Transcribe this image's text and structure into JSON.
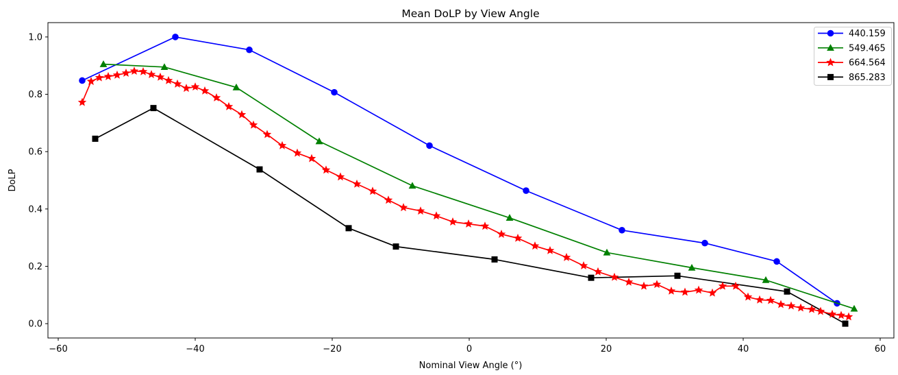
{
  "chart_data": {
    "type": "line",
    "title": "Mean DoLP by View Angle",
    "xlabel": "Nominal View Angle (°)",
    "ylabel": "DoLP",
    "xlim": [
      -61.5,
      62.0
    ],
    "ylim": [
      -0.05,
      1.05
    ],
    "xticks": [
      -60,
      -40,
      -20,
      0,
      20,
      40,
      60
    ],
    "yticks": [
      0.0,
      0.2,
      0.4,
      0.6,
      0.8,
      1.0
    ],
    "grid": false,
    "legend_position": "upper right",
    "draw_order": [
      0,
      1,
      3,
      2
    ],
    "series": [
      {
        "name": "440.159",
        "color": "#0000ff",
        "marker": "circle",
        "points": [
          [
            -56.5,
            0.848
          ],
          [
            -42.9,
            1.0
          ],
          [
            -32.1,
            0.955
          ],
          [
            -19.7,
            0.807
          ],
          [
            -5.8,
            0.621
          ],
          [
            8.3,
            0.464
          ],
          [
            22.3,
            0.326
          ],
          [
            34.4,
            0.281
          ],
          [
            44.9,
            0.217
          ],
          [
            53.7,
            0.071
          ]
        ]
      },
      {
        "name": "549.465",
        "color": "#008000",
        "marker": "triangle",
        "points": [
          [
            -53.4,
            0.905
          ],
          [
            -44.5,
            0.895
          ],
          [
            -34.0,
            0.824
          ],
          [
            -21.9,
            0.636
          ],
          [
            -8.3,
            0.481
          ],
          [
            5.9,
            0.369
          ],
          [
            20.1,
            0.248
          ],
          [
            32.5,
            0.195
          ],
          [
            43.3,
            0.152
          ],
          [
            56.2,
            0.052
          ]
        ]
      },
      {
        "name": "664.564",
        "color": "#ff0000",
        "marker": "star",
        "points": [
          [
            -56.5,
            0.772
          ],
          [
            -55.2,
            0.845
          ],
          [
            -54.0,
            0.858
          ],
          [
            -52.7,
            0.862
          ],
          [
            -51.4,
            0.867
          ],
          [
            -50.1,
            0.874
          ],
          [
            -48.9,
            0.881
          ],
          [
            -47.6,
            0.879
          ],
          [
            -46.4,
            0.869
          ],
          [
            -45.1,
            0.86
          ],
          [
            -43.9,
            0.848
          ],
          [
            -42.6,
            0.836
          ],
          [
            -41.3,
            0.821
          ],
          [
            -40.0,
            0.826
          ],
          [
            -38.6,
            0.812
          ],
          [
            -36.9,
            0.788
          ],
          [
            -35.1,
            0.757
          ],
          [
            -33.2,
            0.729
          ],
          [
            -31.5,
            0.693
          ],
          [
            -29.5,
            0.66
          ],
          [
            -27.3,
            0.621
          ],
          [
            -25.1,
            0.595
          ],
          [
            -23.0,
            0.576
          ],
          [
            -20.9,
            0.536
          ],
          [
            -18.8,
            0.512
          ],
          [
            -16.4,
            0.487
          ],
          [
            -14.1,
            0.462
          ],
          [
            -11.8,
            0.431
          ],
          [
            -9.6,
            0.405
          ],
          [
            -7.1,
            0.393
          ],
          [
            -4.8,
            0.376
          ],
          [
            -2.4,
            0.355
          ],
          [
            -0.1,
            0.348
          ],
          [
            2.3,
            0.34
          ],
          [
            4.7,
            0.312
          ],
          [
            7.1,
            0.298
          ],
          [
            9.6,
            0.271
          ],
          [
            11.8,
            0.255
          ],
          [
            14.2,
            0.231
          ],
          [
            16.7,
            0.202
          ],
          [
            18.8,
            0.181
          ],
          [
            21.2,
            0.162
          ],
          [
            23.3,
            0.145
          ],
          [
            25.5,
            0.131
          ],
          [
            27.4,
            0.137
          ],
          [
            29.5,
            0.114
          ],
          [
            31.5,
            0.11
          ],
          [
            33.5,
            0.117
          ],
          [
            35.5,
            0.107
          ],
          [
            37.0,
            0.131
          ],
          [
            38.9,
            0.131
          ],
          [
            40.7,
            0.093
          ],
          [
            42.4,
            0.083
          ],
          [
            44.0,
            0.081
          ],
          [
            45.5,
            0.067
          ],
          [
            47.0,
            0.062
          ],
          [
            48.4,
            0.055
          ],
          [
            50.0,
            0.05
          ],
          [
            51.3,
            0.043
          ],
          [
            53.0,
            0.033
          ],
          [
            54.3,
            0.029
          ],
          [
            55.4,
            0.024
          ]
        ]
      },
      {
        "name": "865.283",
        "color": "#000000",
        "marker": "square",
        "points": [
          [
            -54.6,
            0.645
          ],
          [
            -46.1,
            0.752
          ],
          [
            -30.6,
            0.538
          ],
          [
            -17.6,
            0.333
          ],
          [
            -10.7,
            0.269
          ],
          [
            3.7,
            0.224
          ],
          [
            17.8,
            0.16
          ],
          [
            30.4,
            0.167
          ],
          [
            46.4,
            0.112
          ],
          [
            54.9,
            0.0
          ]
        ]
      }
    ]
  }
}
